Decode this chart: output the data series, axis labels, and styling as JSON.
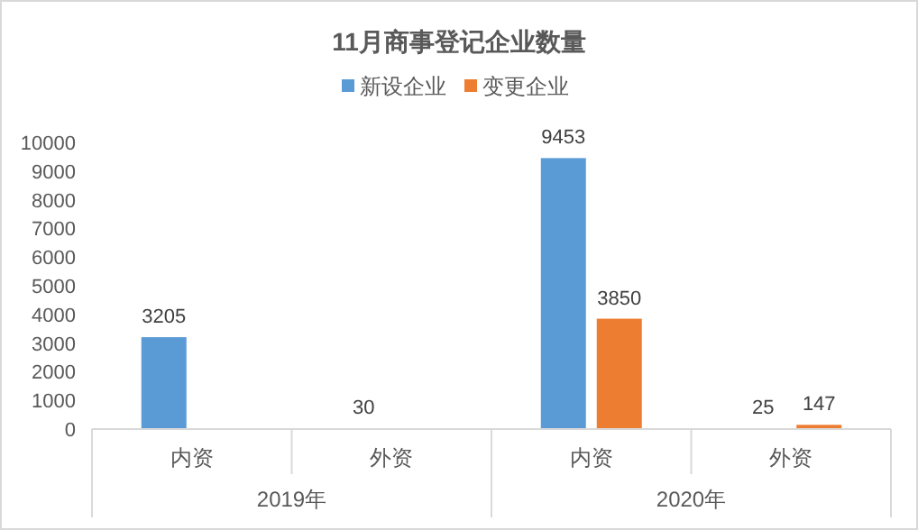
{
  "chart_data": {
    "type": "bar",
    "title": "11月商事登记企业数量",
    "categories": [
      "内资",
      "外资",
      "内资",
      "外资"
    ],
    "series": [
      {
        "name": "新设企业",
        "color": "#5b9bd5",
        "values": [
          3205,
          30,
          9453,
          25
        ]
      },
      {
        "name": "变更企业",
        "color": "#ed7d31",
        "values": [
          null,
          null,
          3850,
          147
        ]
      }
    ],
    "annotations": [
      "2019年",
      "2020年"
    ],
    "ylim": [
      0,
      10000
    ],
    "yticks": [
      0,
      1000,
      2000,
      3000,
      4000,
      5000,
      6000,
      7000,
      8000,
      9000,
      10000
    ],
    "data_labels": true,
    "legend": "top",
    "grid": false
  }
}
